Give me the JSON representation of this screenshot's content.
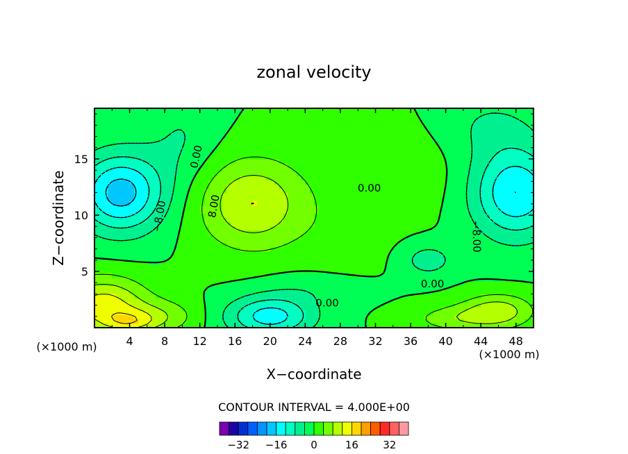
{
  "chart_data": {
    "type": "heatmap",
    "title": "zonal velocity",
    "xlabel": "X−coordinate",
    "ylabel": "Z−coordinate",
    "x_unit_left": "(×1000 m)",
    "x_unit_right": "(×1000 m)",
    "xlim": [
      0,
      50
    ],
    "ylim": [
      0,
      19.5
    ],
    "x_ticks": [
      4,
      8,
      12,
      16,
      20,
      24,
      28,
      32,
      36,
      40,
      44,
      48
    ],
    "x_tick_labels": [
      "4",
      "8",
      "12",
      "16",
      "20",
      "24",
      "28",
      "32",
      "36",
      "40",
      "44",
      "48"
    ],
    "y_ticks": [
      5,
      10,
      15
    ],
    "y_tick_labels": [
      "5",
      "10",
      "15"
    ],
    "contour_interval_text": "CONTOUR INTERVAL = 4.000E+00",
    "contour_labels": [
      {
        "text": "0.00",
        "x": 11.6,
        "y": 15.2,
        "rotate": -78
      },
      {
        "text": "8.00",
        "x": 13.6,
        "y": 10.8,
        "rotate": -80
      },
      {
        "text": "−8.00",
        "x": 7.4,
        "y": 9.9,
        "rotate": -80
      },
      {
        "text": "0.00",
        "x": 31.3,
        "y": 12.4,
        "rotate": 0
      },
      {
        "text": "0.00",
        "x": 26.5,
        "y": 2.2,
        "rotate": 0
      },
      {
        "text": "0.00",
        "x": 38.5,
        "y": 3.9,
        "rotate": 0
      },
      {
        "text": "−8.00",
        "x": 43.5,
        "y": 8.1,
        "rotate": 88
      }
    ],
    "colorbar": {
      "levels": [
        -36,
        -32,
        -28,
        -24,
        -20,
        -16,
        -12,
        -8,
        -4,
        0,
        4,
        8,
        12,
        16,
        20,
        24,
        28,
        32,
        36
      ],
      "colors": [
        "#7a00b0",
        "#1e00a8",
        "#0030d2",
        "#0060ff",
        "#0094ff",
        "#00c8ff",
        "#00ffff",
        "#00ffc0",
        "#00f090",
        "#00ff55",
        "#30ff00",
        "#72ff00",
        "#b4ff00",
        "#f0ff00",
        "#ffd600",
        "#ff9e00",
        "#ff5c00",
        "#ff2a28",
        "#ff6060",
        "#ff9aa0"
      ],
      "tick_values": [
        -32,
        -16,
        0,
        16,
        32
      ],
      "tick_labels": [
        "−32",
        "−16",
        "0",
        "16",
        "32"
      ]
    }
  }
}
